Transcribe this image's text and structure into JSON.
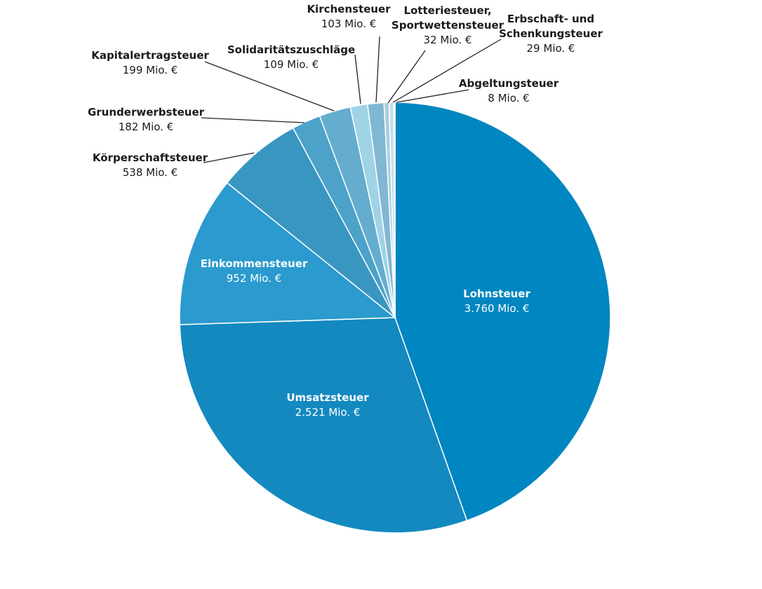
{
  "chart_data": {
    "type": "pie",
    "value_unit": "Mio. €",
    "slices": [
      {
        "name": "Lohnsteuer",
        "value": 3760,
        "value_label": "3.760 Mio. €",
        "color": "#0086C0",
        "label_inside": true
      },
      {
        "name": "Umsatzsteuer",
        "value": 2521,
        "value_label": "2.521 Mio. €",
        "color": "#1389C0",
        "label_inside": true
      },
      {
        "name": "Einkommensteuer",
        "value": 952,
        "value_label": "952 Mio. €",
        "color": "#2B9ACE",
        "label_inside": true
      },
      {
        "name": "Körperschaftsteuer",
        "value": 538,
        "value_label": "538 Mio. €",
        "color": "#3996C1",
        "label_inside": false
      },
      {
        "name": "Grunderwerbsteuer",
        "value": 182,
        "value_label": "182 Mio. €",
        "color": "#4CA2C8",
        "label_inside": false
      },
      {
        "name": "Kapitalertragsteuer",
        "value": 199,
        "value_label": "199 Mio. €",
        "color": "#64ADCE",
        "label_inside": false
      },
      {
        "name": "Solidaritätszuschläge",
        "value": 109,
        "value_label": "109 Mio. €",
        "color": "#9FD3E6",
        "label_inside": false
      },
      {
        "name": "Kirchensteuer",
        "value": 103,
        "value_label": "103 Mio. €",
        "color": "#80B7D2",
        "label_inside": false
      },
      {
        "name": "Lotteriesteuer, Sportwettensteuer",
        "value": 32,
        "value_label": "32 Mio. €",
        "color": "#A9CFE1",
        "label_inside": false
      },
      {
        "name": "Erbschaft- und Schenkungsteuer",
        "value": 29,
        "value_label": "29 Mio. €",
        "color": "#C6DEEB",
        "label_inside": false
      },
      {
        "name": "Abgeltungsteuer",
        "value": 8,
        "value_label": "8 Mio. €",
        "color": "#DCEBF3",
        "label_inside": false
      }
    ]
  }
}
